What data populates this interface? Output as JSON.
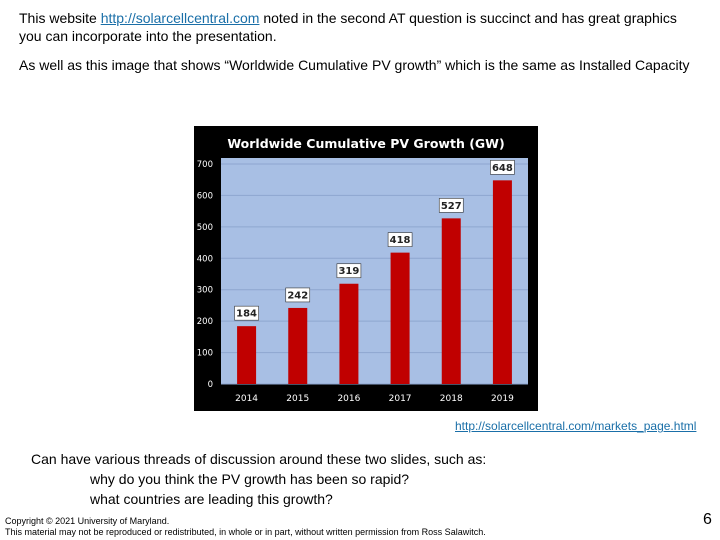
{
  "slide": {
    "p1_before": "This website ",
    "p1_link": "http://solarcellcentral.com",
    "p1_after": " noted in the second AT question is succinct and has great graphics",
    "p1_line2": "you can incorporate into the presentation.",
    "p2": "As well as this image that shows “Worldwide Cumulative PV growth” which is the same as Installed Capacity",
    "source_link": "http://solarcellcentral.com/markets_page.html",
    "p3": "Can have various threads of discussion around these two slides, such as:",
    "q1": "why do you think the PV growth has been so rapid?",
    "q2": "what countries are leading this growth?",
    "footer_line1": "Copyright © 2021 University of Maryland.",
    "footer_line2": "This material may not be reproduced or redistributed, in whole or in part, without written permission from Ross Salawitch.",
    "page_number": "6"
  },
  "colors": {
    "plot_bg": "#a8bfe4",
    "bar": "#c00000",
    "link": "#1a6fa8"
  },
  "chart_data": {
    "type": "bar",
    "title": "Worldwide Cumulative PV Growth (GW)",
    "categories": [
      "2014",
      "2015",
      "2016",
      "2017",
      "2018",
      "2019"
    ],
    "values": [
      184,
      242,
      319,
      418,
      527,
      648
    ],
    "data_labels": [
      "184",
      "242",
      "319",
      "418",
      "527",
      "648"
    ],
    "ylim": [
      0,
      700
    ],
    "yticks": [
      0,
      100,
      200,
      300,
      400,
      500,
      600,
      700
    ],
    "grid": true,
    "legend": "none"
  }
}
